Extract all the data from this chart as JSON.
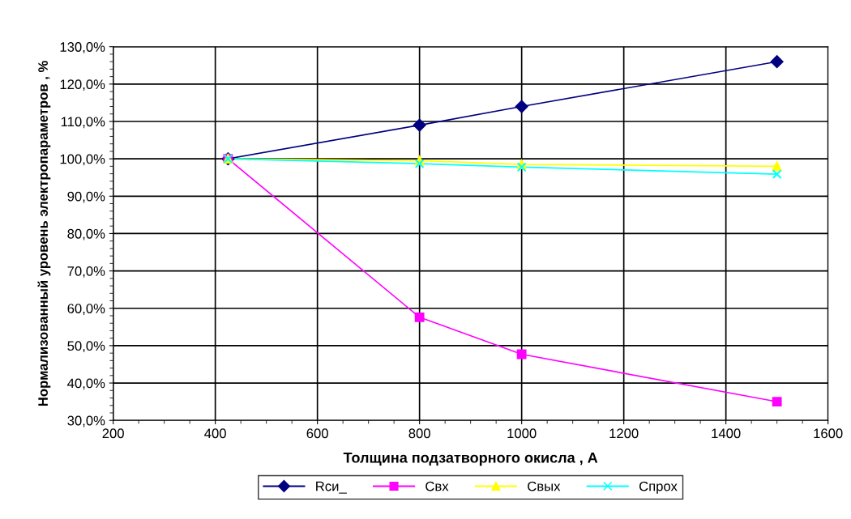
{
  "chart_data": {
    "type": "line",
    "xlabel": "Толщина подзатворного окисла , А",
    "ylabel": "Нормализованный уровень электропараметров , %",
    "x": [
      425,
      800,
      1000,
      1500
    ],
    "series": [
      {
        "name": "Rси_",
        "color": "#000080",
        "marker": "diamond",
        "values": [
          100,
          109,
          114,
          126
        ]
      },
      {
        "name": "Свх",
        "color": "#ff00ff",
        "marker": "square",
        "values": [
          100,
          57.6,
          47.7,
          35
        ]
      },
      {
        "name": "Свых",
        "color": "#ffff00",
        "marker": "triangle",
        "values": [
          100,
          99.5,
          98.5,
          98
        ]
      },
      {
        "name": "Спрох",
        "color": "#00ffff",
        "marker": "cross",
        "values": [
          100,
          98.7,
          97.8,
          95.9
        ]
      }
    ],
    "xlim": [
      200,
      1600
    ],
    "xticks": [
      200,
      400,
      600,
      800,
      1000,
      1200,
      1400,
      1600
    ],
    "ylim": [
      30,
      130
    ],
    "yticks": [
      {
        "value": 30,
        "label": "30,0%"
      },
      {
        "value": 40,
        "label": "40,0%"
      },
      {
        "value": 50,
        "label": "50,0%"
      },
      {
        "value": 60,
        "label": "60,0%"
      },
      {
        "value": 70,
        "label": "70,0%"
      },
      {
        "value": 80,
        "label": "80,0%"
      },
      {
        "value": 90,
        "label": "90,0%"
      },
      {
        "value": 100,
        "label": "100,0%"
      },
      {
        "value": 110,
        "label": "110,0%"
      },
      {
        "value": 120,
        "label": "120,0%"
      },
      {
        "value": 130,
        "label": "130,0%"
      }
    ],
    "grid": true,
    "legend": "bottom",
    "line_style": "solid"
  }
}
